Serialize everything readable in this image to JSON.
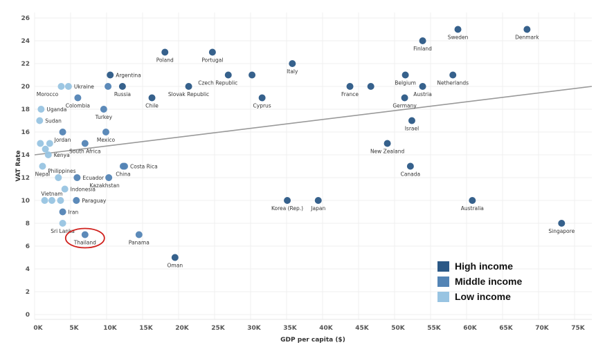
{
  "chart_data": {
    "type": "scatter",
    "title": "",
    "xlabel": "GDP per capita ($)",
    "ylabel": "VAT Rate",
    "xlim": [
      0,
      77000
    ],
    "ylim": [
      0,
      26
    ],
    "x_ticks": [
      "0K",
      "5K",
      "10K",
      "15K",
      "20K",
      "25K",
      "30K",
      "35K",
      "40K",
      "45K",
      "50K",
      "55K",
      "60K",
      "65K",
      "70K",
      "75K"
    ],
    "y_ticks": [
      "0",
      "2",
      "4",
      "6",
      "8",
      "10",
      "12",
      "14",
      "16",
      "18",
      "20",
      "22",
      "24",
      "26"
    ],
    "grid": true,
    "legend_placement": "bottom-right",
    "legend": [
      {
        "key": "high",
        "label": "High income",
        "color": "#2b5886"
      },
      {
        "key": "middle",
        "label": "Middle income",
        "color": "#5384b5"
      },
      {
        "key": "low",
        "label": "Low income",
        "color": "#98c4e2"
      }
    ],
    "trend_line": {
      "x": [
        0,
        77400
      ],
      "y": [
        14.0,
        20.0
      ],
      "color": "#999999"
    },
    "highlight": {
      "label": "Thailand",
      "color": "#d0201c"
    },
    "points": [
      {
        "name": "Sweden",
        "x": 58800,
        "y": 25,
        "group": "high"
      },
      {
        "name": "Denmark",
        "x": 68400,
        "y": 25,
        "group": "high"
      },
      {
        "name": "Finland",
        "x": 53900,
        "y": 24,
        "group": "high"
      },
      {
        "name": "Poland",
        "x": 18100,
        "y": 23,
        "group": "high"
      },
      {
        "name": "Portugal",
        "x": 24700,
        "y": 23,
        "group": "high"
      },
      {
        "name": "Italy",
        "x": 35800,
        "y": 22,
        "group": "high"
      },
      {
        "name": "Argentina",
        "x": 10500,
        "y": 21,
        "group": "high"
      },
      {
        "name": "Czech Republic",
        "x": 26900,
        "y": 21,
        "group": "high"
      },
      {
        "name": "",
        "x": 30200,
        "y": 21,
        "group": "high"
      },
      {
        "name": "Belgium",
        "x": 51500,
        "y": 21,
        "group": "high"
      },
      {
        "name": "Netherlands",
        "x": 58100,
        "y": 21,
        "group": "high"
      },
      {
        "name": "",
        "x": 10200,
        "y": 20,
        "group": "middle"
      },
      {
        "name": "Russia",
        "x": 12200,
        "y": 20,
        "group": "high"
      },
      {
        "name": "Slovak Republic",
        "x": 21400,
        "y": 20,
        "group": "high"
      },
      {
        "name": "France",
        "x": 43800,
        "y": 20,
        "group": "high"
      },
      {
        "name": "",
        "x": 46700,
        "y": 20,
        "group": "high"
      },
      {
        "name": "Austria",
        "x": 53900,
        "y": 20,
        "group": "high"
      },
      {
        "name": "Chile",
        "x": 16300,
        "y": 19,
        "group": "high"
      },
      {
        "name": "Cyprus",
        "x": 31600,
        "y": 19,
        "group": "high"
      },
      {
        "name": "Germany",
        "x": 51400,
        "y": 19,
        "group": "high"
      },
      {
        "name": "Israel",
        "x": 52400,
        "y": 17,
        "group": "high"
      },
      {
        "name": "New Zealand",
        "x": 49000,
        "y": 15,
        "group": "high"
      },
      {
        "name": "Canada",
        "x": 52200,
        "y": 13,
        "group": "high"
      },
      {
        "name": "Korea (Rep.)",
        "x": 35100,
        "y": 10,
        "group": "high"
      },
      {
        "name": "Japan",
        "x": 39400,
        "y": 10,
        "group": "high"
      },
      {
        "name": "Australia",
        "x": 60800,
        "y": 10,
        "group": "high"
      },
      {
        "name": "Singapore",
        "x": 73200,
        "y": 8,
        "group": "high"
      },
      {
        "name": "Oman",
        "x": 19500,
        "y": 5,
        "group": "high"
      },
      {
        "name": "Morocco",
        "x": 3700,
        "y": 20,
        "group": "low"
      },
      {
        "name": "Ukraine",
        "x": 4700,
        "y": 20,
        "group": "low"
      },
      {
        "name": "Colombia",
        "x": 6000,
        "y": 19,
        "group": "middle"
      },
      {
        "name": "Turkey",
        "x": 9600,
        "y": 18,
        "group": "middle"
      },
      {
        "name": "Uganda",
        "x": 900,
        "y": 18,
        "group": "low"
      },
      {
        "name": "Sudan",
        "x": 700,
        "y": 17,
        "group": "low"
      },
      {
        "name": "Jordan",
        "x": 3900,
        "y": 16,
        "group": "middle"
      },
      {
        "name": "Mexico",
        "x": 9900,
        "y": 16,
        "group": "middle"
      },
      {
        "name": "South Africa",
        "x": 7000,
        "y": 15,
        "group": "middle"
      },
      {
        "name": "",
        "x": 800,
        "y": 15,
        "group": "low"
      },
      {
        "name": "",
        "x": 2100,
        "y": 15,
        "group": "low"
      },
      {
        "name": "",
        "x": 1500,
        "y": 14.5,
        "group": "low"
      },
      {
        "name": "Kenya",
        "x": 1900,
        "y": 14,
        "group": "low"
      },
      {
        "name": "China",
        "x": 12300,
        "y": 13,
        "group": "middle"
      },
      {
        "name": "Costa Rica",
        "x": 12500,
        "y": 13,
        "group": "middle"
      },
      {
        "name": "Nepal",
        "x": 1100,
        "y": 13,
        "group": "low"
      },
      {
        "name": "Philippines",
        "x": 3300,
        "y": 12,
        "group": "low"
      },
      {
        "name": "Ecuador",
        "x": 5900,
        "y": 12,
        "group": "middle"
      },
      {
        "name": "Kazakhstan",
        "x": 10300,
        "y": 12,
        "group": "middle"
      },
      {
        "name": "Indonesia",
        "x": 4200,
        "y": 11,
        "group": "low"
      },
      {
        "name": "",
        "x": 1400,
        "y": 10,
        "group": "low"
      },
      {
        "name": "Vietnam",
        "x": 2400,
        "y": 10,
        "group": "low"
      },
      {
        "name": "",
        "x": 3600,
        "y": 10,
        "group": "low"
      },
      {
        "name": "Paraguay",
        "x": 5800,
        "y": 10,
        "group": "middle"
      },
      {
        "name": "Iran",
        "x": 3900,
        "y": 9,
        "group": "middle"
      },
      {
        "name": "Sri Lanka",
        "x": 3900,
        "y": 8,
        "group": "low"
      },
      {
        "name": "Thailand",
        "x": 7000,
        "y": 7,
        "group": "middle"
      },
      {
        "name": "Panama",
        "x": 14500,
        "y": 7,
        "group": "middle"
      }
    ]
  }
}
